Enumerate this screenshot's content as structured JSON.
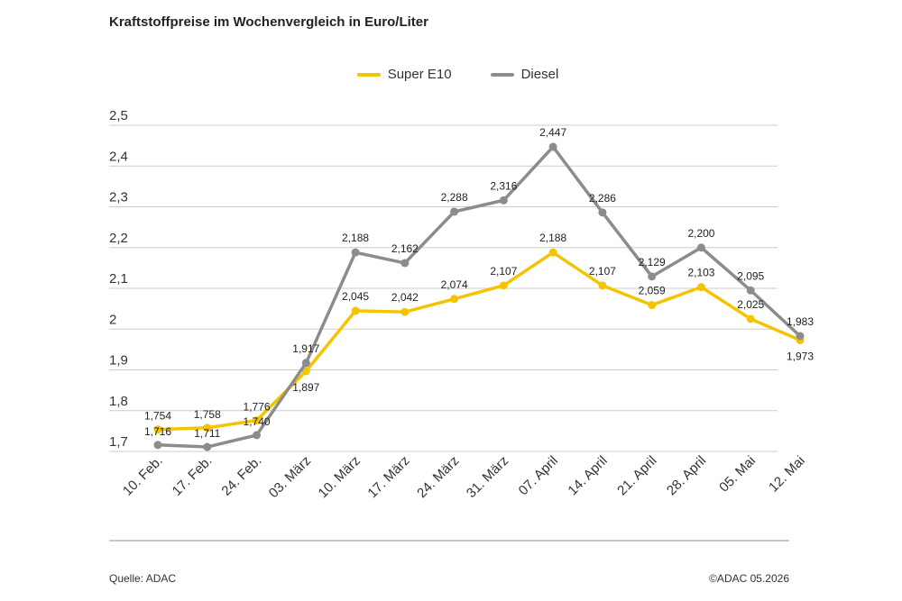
{
  "title": "Kraftstoffpreise im Wochenvergleich in Euro/Liter",
  "source": "Quelle: ADAC",
  "copyright": "©ADAC 05.2026",
  "colors": {
    "super": "#f4c400",
    "diesel": "#8c8c8c",
    "grid": "#cccccc",
    "footer_line": "#c8c8c8"
  },
  "chart_data": {
    "type": "line",
    "title": "Kraftstoffpreise im Wochenvergleich in Euro/Liter",
    "xlabel": "",
    "ylabel": "",
    "ylim": [
      1.7,
      2.5
    ],
    "yticks": [
      1.7,
      1.8,
      1.9,
      2.0,
      2.1,
      2.2,
      2.3,
      2.4,
      2.5
    ],
    "ytick_labels": [
      "1,7",
      "1,8",
      "1,9",
      "2",
      "2,1",
      "2,2",
      "2,3",
      "2,4",
      "2,5"
    ],
    "grid": true,
    "legend_position": "top-center",
    "categories": [
      "10. Feb.",
      "17. Feb.",
      "24. Feb.",
      "03. März",
      "10. März",
      "17. März",
      "24. März",
      "31. März",
      "07. April",
      "14. April",
      "21. April",
      "28. April",
      "05. Mai",
      "12. Mai"
    ],
    "series": [
      {
        "name": "Super E10",
        "color": "#f4c400",
        "values": [
          1.754,
          1.758,
          1.776,
          1.897,
          2.045,
          2.042,
          2.074,
          2.107,
          2.188,
          2.107,
          2.059,
          2.103,
          2.025,
          1.973
        ],
        "labels": [
          "1,754",
          "1,758",
          "1,776",
          "1,897",
          "2,045",
          "2,042",
          "2,074",
          "2,107",
          "2,188",
          "2,107",
          "2,059",
          "2,103",
          "2,025",
          "1,973"
        ]
      },
      {
        "name": "Diesel",
        "color": "#8c8c8c",
        "values": [
          1.716,
          1.711,
          1.74,
          1.917,
          2.188,
          2.162,
          2.288,
          2.316,
          2.447,
          2.286,
          2.129,
          2.2,
          2.095,
          1.983
        ],
        "labels": [
          "1,716",
          "1,711",
          "1,740",
          "1,917",
          "2,188",
          "2,162",
          "2,288",
          "2,316",
          "2,447",
          "2,286",
          "2,129",
          "2,200",
          "2,095",
          "1,983"
        ]
      }
    ]
  }
}
